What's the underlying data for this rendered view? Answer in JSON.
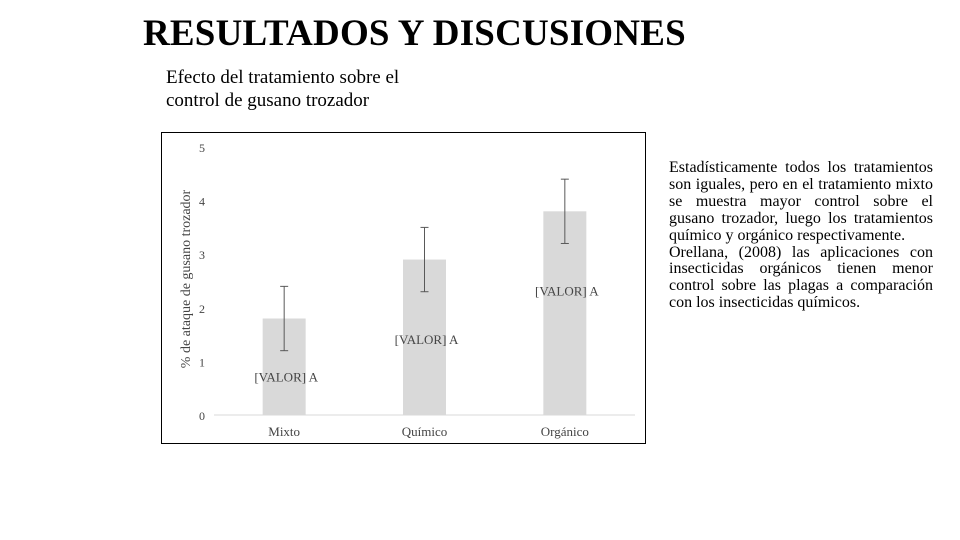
{
  "slide": {
    "title": "RESULTADOS Y DISCUSIONES",
    "subtitle_line1": "Efecto del tratamiento sobre el",
    "subtitle_line2": "control de gusano trozador"
  },
  "discussion": {
    "paragraph1": "Estadísticamente todos los tratamientos son iguales, pero en el tratamiento mixto se muestra mayor control sobre el gusano trozador, luego los tratamientos químico y orgánico respectivamente.",
    "paragraph2": "Orellana, (2008) las aplicaciones con insecticidas orgánicos tienen menor control sobre las plagas a comparación con los insecticidas químicos."
  },
  "chart_data": {
    "type": "bar",
    "title": "",
    "xlabel": "",
    "ylabel": "% de ataque de gusano trozador",
    "categories": [
      "Mixto",
      "Químico",
      "Orgánico"
    ],
    "values": [
      1.8,
      2.9,
      3.8
    ],
    "error": [
      0.6,
      0.6,
      0.6
    ],
    "data_labels": [
      "[VALOR] A",
      "[VALOR] A",
      "[VALOR] A"
    ],
    "ylim": [
      0,
      5
    ],
    "yticks": [
      "0",
      "1",
      "2",
      "3",
      "4",
      "5"
    ],
    "grid": false,
    "legend": "none",
    "bar_color": "#d9d9d9",
    "error_color": "#595959"
  }
}
